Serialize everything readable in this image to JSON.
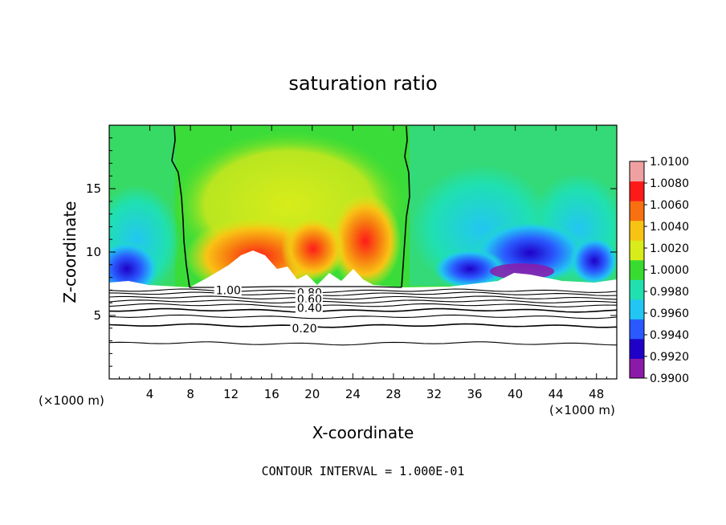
{
  "chart_data": {
    "type": "heatmap",
    "title": "saturation ratio",
    "xlabel": "X-coordinate",
    "ylabel": "Z-coordinate",
    "x_unit": "(×1000 m)",
    "z_unit": "(×1000 m)",
    "xlim": [
      0,
      50
    ],
    "zlim": [
      0,
      20
    ],
    "x_ticks": [
      4,
      8,
      12,
      16,
      20,
      24,
      28,
      32,
      36,
      40,
      44,
      48
    ],
    "z_ticks": [
      5,
      10,
      15
    ],
    "colorbar": {
      "min": 0.99,
      "max": 1.01,
      "tick_labels": [
        "0.9900",
        "0.9920",
        "0.9940",
        "0.9960",
        "0.9980",
        "1.0000",
        "1.0020",
        "1.0040",
        "1.0060",
        "1.0080",
        "1.0100"
      ],
      "colors": [
        "#8c1aa8",
        "#1e00c8",
        "#2a5aff",
        "#22c6f2",
        "#20e0b0",
        "#38dc30",
        "#d8ec1a",
        "#f8c414",
        "#f87010",
        "#ff1a1a",
        "#f0a0a0"
      ]
    },
    "contour_labels": [
      {
        "text": "1.00",
        "x": 10.5,
        "z": 7.0
      },
      {
        "text": "0.80",
        "x": 18.5,
        "z": 6.8
      },
      {
        "text": "0.60",
        "x": 18.5,
        "z": 6.3
      },
      {
        "text": "0.40",
        "x": 18.5,
        "z": 5.6
      },
      {
        "text": "0.20",
        "x": 18.0,
        "z": 4.0
      }
    ],
    "contour_levels": [
      0.1,
      0.2,
      0.3,
      0.4,
      0.5,
      0.6,
      0.7,
      0.8,
      0.9,
      1.0
    ],
    "saturation_boundary_x": [
      6.5,
      29.0
    ],
    "contour_interval": "CONTOUR INTERVAL = 1.000E-01"
  }
}
